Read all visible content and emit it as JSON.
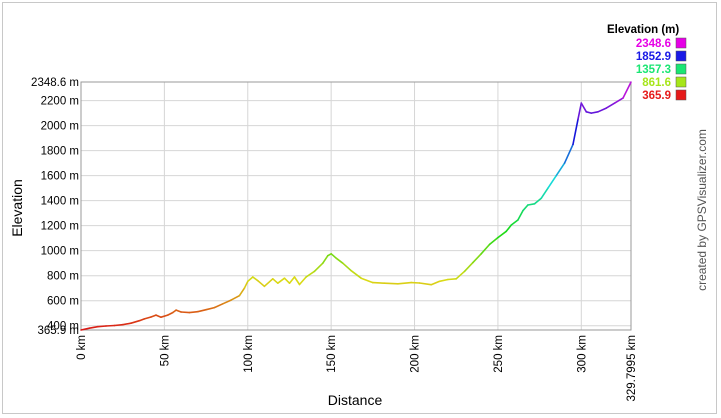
{
  "chart_data": {
    "type": "line",
    "xlabel": "Distance",
    "ylabel": "Elevation",
    "xlim": [
      0,
      329.7995
    ],
    "ylim": [
      365.9,
      2348.6
    ],
    "x_ticks": [
      {
        "value": 0,
        "label": "0 km"
      },
      {
        "value": 50,
        "label": "50 km"
      },
      {
        "value": 100,
        "label": "100 km"
      },
      {
        "value": 150,
        "label": "150 km"
      },
      {
        "value": 200,
        "label": "200 km"
      },
      {
        "value": 250,
        "label": "250 km"
      },
      {
        "value": 300,
        "label": "300 km"
      },
      {
        "value": 329.7995,
        "label": "329.7995 km"
      }
    ],
    "y_ticks": [
      {
        "value": 365.9,
        "label": "365.9 m"
      },
      {
        "value": 400,
        "label": "400 m"
      },
      {
        "value": 600,
        "label": "600 m"
      },
      {
        "value": 800,
        "label": "800 m"
      },
      {
        "value": 1000,
        "label": "1000 m"
      },
      {
        "value": 1200,
        "label": "1200 m"
      },
      {
        "value": 1400,
        "label": "1400 m"
      },
      {
        "value": 1600,
        "label": "1600 m"
      },
      {
        "value": 1800,
        "label": "1800 m"
      },
      {
        "value": 2000,
        "label": "2000 m"
      },
      {
        "value": 2200,
        "label": "2200 m"
      },
      {
        "value": 2348.6,
        "label": "2348.6 m"
      }
    ],
    "grid": true,
    "legend": {
      "title": "Elevation (m)",
      "placement": "top-right",
      "entries": [
        {
          "label": "2348.6",
          "color": "#e600e6"
        },
        {
          "label": "1852.9",
          "color": "#1a1ae6"
        },
        {
          "label": "1357.3",
          "color": "#1ae673"
        },
        {
          "label": "861.6",
          "color": "#a6e61a"
        },
        {
          "label": "365.9",
          "color": "#e61a1a"
        }
      ]
    },
    "series": [
      {
        "x": [
          0,
          5,
          10,
          15,
          20,
          25,
          30,
          35,
          38,
          42,
          45,
          48,
          52,
          55,
          57,
          60,
          65,
          70,
          75,
          80,
          85,
          90,
          95,
          98,
          100,
          103,
          106,
          110,
          115,
          118,
          122,
          125,
          128,
          131,
          135,
          140,
          145,
          148,
          150,
          153,
          157,
          162,
          168,
          175,
          182,
          190,
          198,
          203,
          210,
          215,
          220,
          225,
          230,
          235,
          240,
          245,
          250,
          255,
          258,
          262,
          265,
          268,
          272,
          276,
          280,
          285,
          290,
          295,
          298,
          300,
          303,
          306,
          310,
          315,
          320,
          325,
          329.8
        ],
        "y": [
          366,
          380,
          392,
          398,
          402,
          408,
          420,
          440,
          455,
          470,
          485,
          468,
          485,
          505,
          525,
          510,
          505,
          512,
          528,
          545,
          575,
          605,
          640,
          700,
          755,
          790,
          760,
          715,
          775,
          740,
          780,
          740,
          790,
          730,
          790,
          835,
          900,
          960,
          975,
          940,
          900,
          840,
          780,
          745,
          740,
          735,
          745,
          742,
          728,
          755,
          770,
          775,
          835,
          905,
          975,
          1050,
          1105,
          1155,
          1205,
          1245,
          1320,
          1365,
          1375,
          1420,
          1500,
          1600,
          1700,
          1850,
          2050,
          2180,
          2110,
          2100,
          2110,
          2140,
          2180,
          2220,
          2348
        ]
      }
    ]
  },
  "credit": "created by GPSVisualizer.com"
}
